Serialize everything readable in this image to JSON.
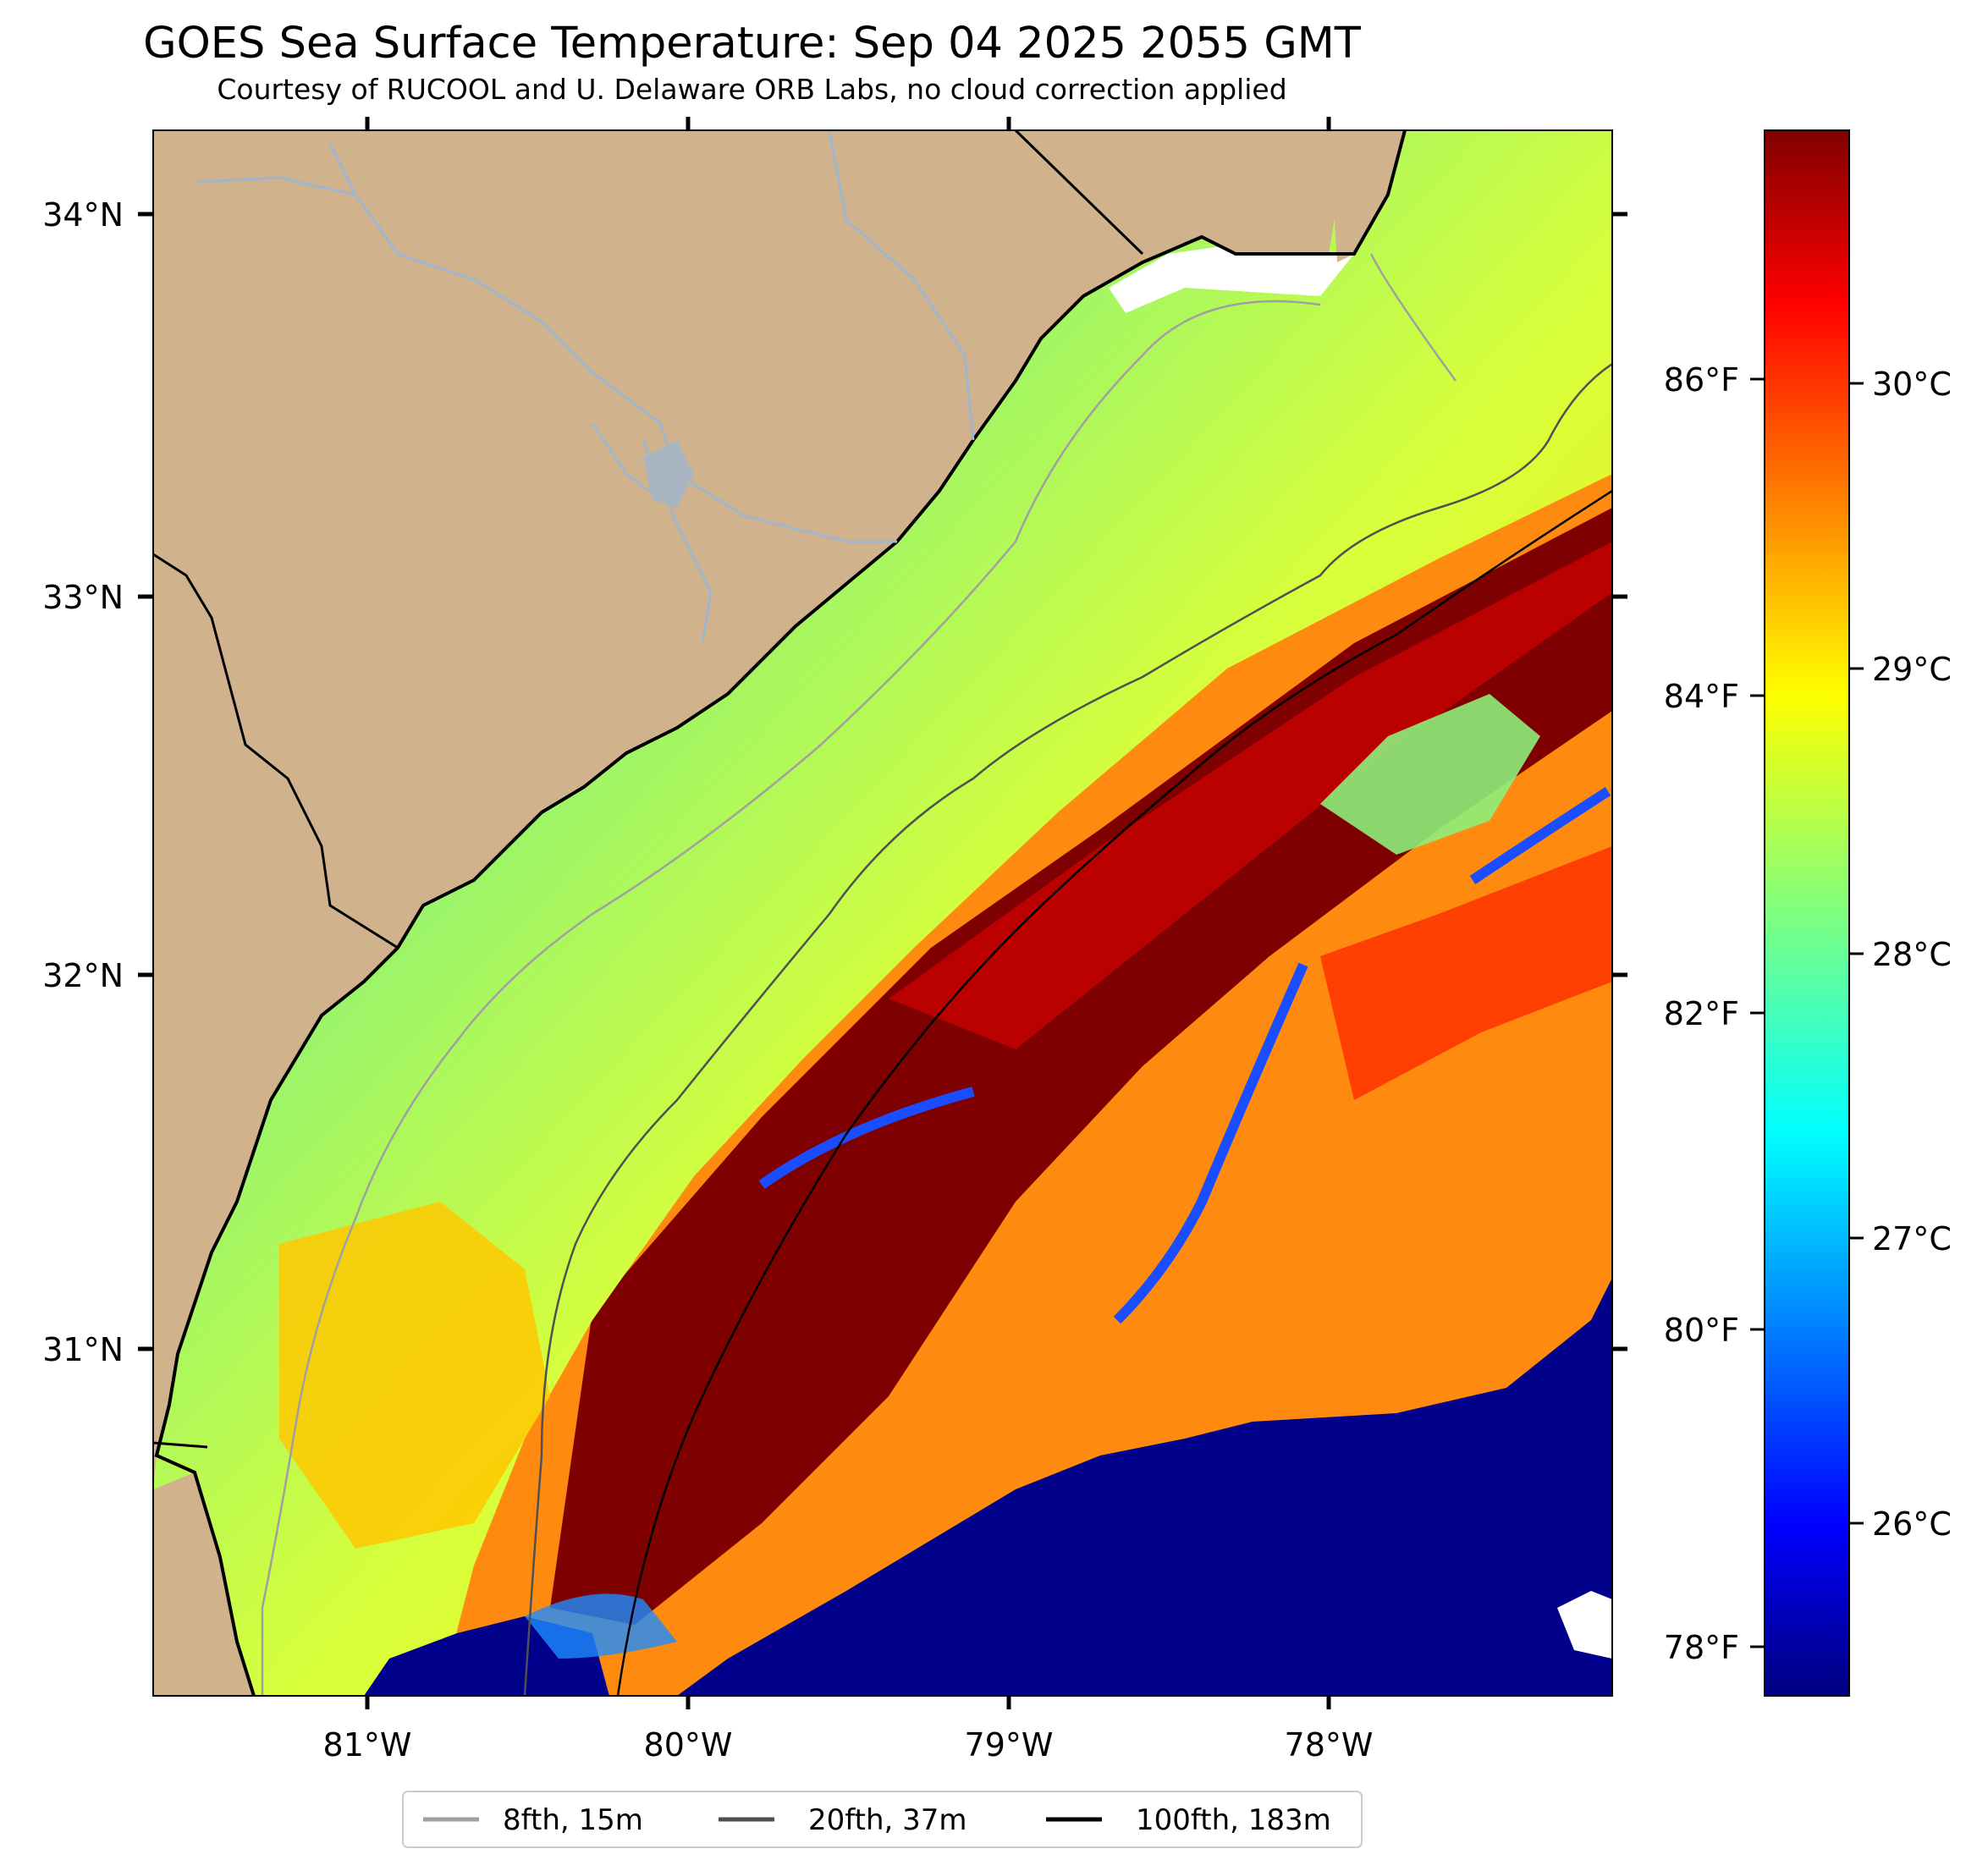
{
  "title": "GOES Sea Surface Temperature: Sep 04 2025 2055 GMT",
  "subtitle": "Courtesy of RUCOOL and U. Delaware ORB Labs, no cloud correction applied",
  "map": {
    "lon_ticks": [
      "81°W",
      "80°W",
      "79°W",
      "78°W"
    ],
    "lat_ticks": [
      "34°N",
      "33°N",
      "32°N",
      "31°N"
    ]
  },
  "colorbar": {
    "celsius_ticks": [
      "30°C",
      "29°C",
      "28°C",
      "27°C",
      "26°C"
    ],
    "fahrenheit_ticks": [
      "86°F",
      "84°F",
      "82°F",
      "80°F",
      "78°F"
    ],
    "colormap": "jet",
    "colors": [
      "#00007f",
      "#0000ff",
      "#007fff",
      "#00ffff",
      "#7fff7f",
      "#ffff00",
      "#ff7f00",
      "#ff0000",
      "#7f0000"
    ]
  },
  "legend": {
    "items": [
      {
        "label": "8fth, 15m",
        "color": "#a0a0a0"
      },
      {
        "label": "20fth, 37m",
        "color": "#505050"
      },
      {
        "label": "100fth, 183m",
        "color": "#000000"
      }
    ]
  },
  "colors": {
    "land": "#d0b38c",
    "river": "#9fb6d0",
    "cold_water": "#00008b"
  }
}
